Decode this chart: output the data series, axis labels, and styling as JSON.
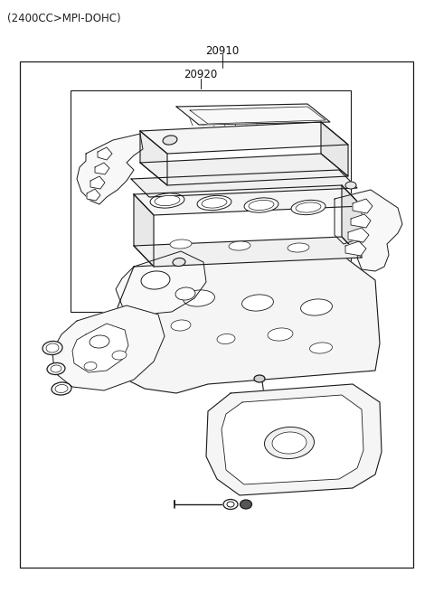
{
  "title": "(2400CC>MPI-DOHC)",
  "label_20910": "20910",
  "label_20920": "20920",
  "bg_color": "#ffffff",
  "line_color": "#1a1a1a",
  "fig_width": 4.8,
  "fig_height": 6.55,
  "dpi": 100
}
